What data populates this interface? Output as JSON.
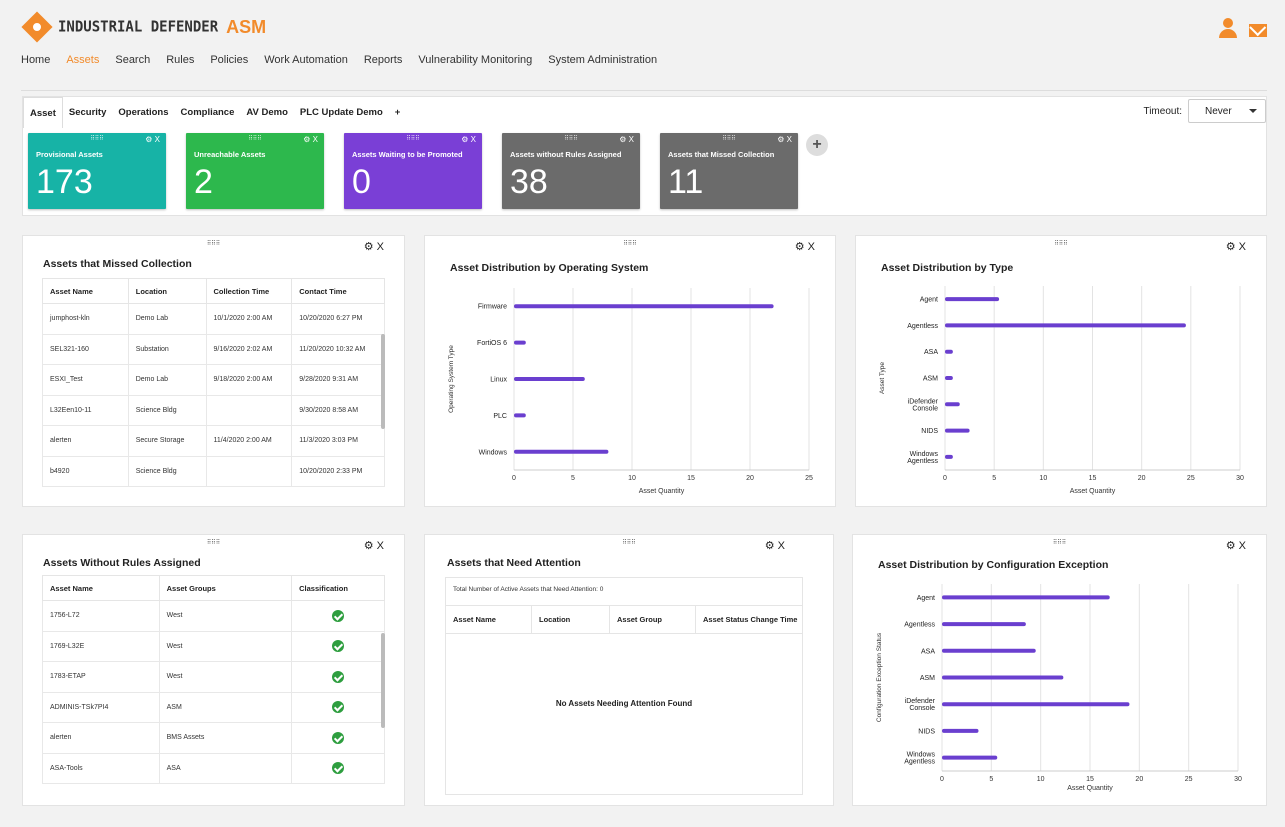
{
  "brand": {
    "name": "INDUSTRIAL DEFENDER",
    "product": "ASM"
  },
  "nav": [
    "Home",
    "Assets",
    "Search",
    "Rules",
    "Policies",
    "Work Automation",
    "Reports",
    "Vulnerability Monitoring",
    "System Administration"
  ],
  "nav_active": "Assets",
  "tabs": [
    "Asset",
    "Security",
    "Operations",
    "Compliance",
    "AV Demo",
    "PLC Update Demo",
    "+"
  ],
  "active_tab": "Asset",
  "timeout": {
    "label": "Timeout:",
    "value": "Never"
  },
  "widget_controls": "⚙ X",
  "drag_handle": "⠿⠿⠿",
  "tiles": [
    {
      "label": "Provisional Assets",
      "value": "173",
      "color": "#17b3a6"
    },
    {
      "label": "Unreachable Assets",
      "value": "2",
      "color": "#2db84d"
    },
    {
      "label": "Assets Waiting to be Promoted",
      "value": "0",
      "color": "#7a3fd6"
    },
    {
      "label": "Assets without Rules Assigned",
      "value": "38",
      "color": "#6b6b6b"
    },
    {
      "label": "Assets that Missed Collection",
      "value": "11",
      "color": "#6b6b6b"
    }
  ],
  "add_tile": "+",
  "missed": {
    "title": "Assets that Missed Collection",
    "headers": [
      "Asset Name",
      "Location",
      "Collection Time",
      "Contact Time"
    ],
    "rows": [
      [
        "jumphost-kln",
        "Demo Lab",
        "10/1/2020 2:00 AM",
        "10/20/2020 6:27 PM"
      ],
      [
        "SEL321-160",
        "Substation",
        "9/16/2020 2:02 AM",
        "11/20/2020 10:32 AM"
      ],
      [
        "ESXI_Test",
        "Demo Lab",
        "9/18/2020 2:00 AM",
        "9/28/2020 9:31 AM"
      ],
      [
        "L32Een10-11",
        "Science Bldg",
        "",
        "9/30/2020 8:58 AM"
      ],
      [
        "alerten",
        "Secure Storage",
        "11/4/2020 2:00 AM",
        "11/3/2020 3:03 PM"
      ],
      [
        "b4920",
        "Science Bldg",
        "",
        "10/20/2020 2:33 PM"
      ]
    ]
  },
  "norules": {
    "title": "Assets Without Rules Assigned",
    "headers": [
      "Asset Name",
      "Asset Groups",
      "Classification"
    ],
    "rows": [
      [
        "1756-L72",
        "West"
      ],
      [
        "1769-L32E",
        "West"
      ],
      [
        "1783-ETAP",
        "West"
      ],
      [
        "ADMINIS-TSk7PI4",
        "ASM"
      ],
      [
        "alerten",
        "BMS Assets"
      ],
      [
        "ASA-Tools",
        "ASA"
      ]
    ]
  },
  "attention": {
    "title": "Assets that Need Attention",
    "total_label": "Total Number of Active Assets that Need Attention: 0",
    "headers": [
      "Asset Name",
      "Location",
      "Asset Group",
      "Asset Status Change Time"
    ],
    "empty": "No Assets Needing Attention Found"
  },
  "chart_data": [
    {
      "type": "bar",
      "orientation": "horizontal",
      "title": "Asset Distribution by Operating System",
      "categories": [
        "Firmware",
        "FortiOS 6",
        "Linux",
        "PLC",
        "Windows"
      ],
      "values": [
        22,
        1,
        6,
        1,
        8
      ],
      "xlabel": "Asset Quantity",
      "ylabel": "Operating System Type",
      "xlim": [
        0,
        25
      ],
      "ticks": [
        0,
        5,
        10,
        15,
        20,
        25
      ],
      "color": "#6a3fcf"
    },
    {
      "type": "bar",
      "orientation": "horizontal",
      "title": "Asset Distribution by Type",
      "categories": [
        "Agent",
        "Agentless",
        "ASA",
        "ASM",
        "iDefender Console",
        "NIDS",
        "Windows Agentless"
      ],
      "values": [
        5.5,
        24.5,
        0.8,
        0.8,
        1.5,
        2.5,
        0.8
      ],
      "xlabel": "Asset Quantity",
      "ylabel": "Asset Type",
      "xlim": [
        0,
        30
      ],
      "ticks": [
        0,
        5,
        10,
        15,
        20,
        25,
        30
      ],
      "color": "#6a3fcf"
    },
    {
      "type": "bar",
      "orientation": "horizontal",
      "title": "Asset Distribution by Configuration Exception",
      "categories": [
        "Agent",
        "Agentless",
        "ASA",
        "ASM",
        "iDefender Console",
        "NIDS",
        "Windows Agentless"
      ],
      "values": [
        17,
        8.5,
        9.5,
        12.3,
        19,
        3.7,
        5.6
      ],
      "xlabel": "Asset Quantity",
      "ylabel": "Configuration Exception Status",
      "xlim": [
        0,
        30
      ],
      "ticks": [
        0,
        5,
        10,
        15,
        20,
        25,
        30
      ],
      "color": "#6a3fcf"
    }
  ]
}
